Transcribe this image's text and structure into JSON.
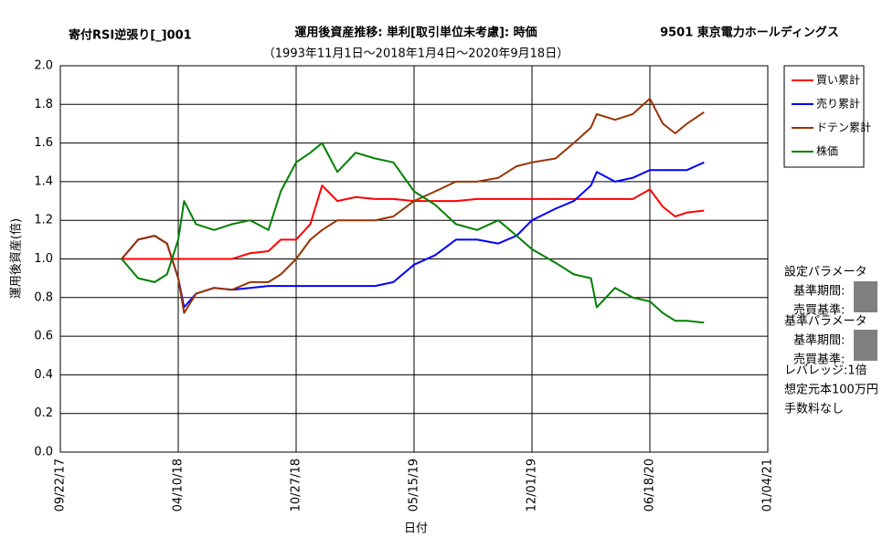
{
  "chart_data": {
    "type": "line",
    "header_left": "寄付RSI逆張り[_]001",
    "title": "運用後資産推移: 単利[取引単位未考慮]: 時価",
    "header_right": "9501 東京電力ホールディングス",
    "subtitle": "（1993年11月1日～2018年1月4日～2020年9月18日）",
    "x_label": "日付",
    "y_label": "運用後資産(倍)",
    "x": [
      "01/04/18",
      "02/01/18",
      "03/01/18",
      "03/22/18",
      "04/10/18",
      "04/20/18",
      "05/10/18",
      "06/10/18",
      "07/10/18",
      "08/10/18",
      "09/10/18",
      "10/01/18",
      "10/27/18",
      "11/20/18",
      "12/10/18",
      "01/05/19",
      "02/05/19",
      "03/10/19",
      "04/10/19",
      "05/15/19",
      "06/20/19",
      "07/25/19",
      "08/30/19",
      "10/05/19",
      "11/05/19",
      "12/01/19",
      "01/10/20",
      "02/10/20",
      "03/10/20",
      "03/20/20",
      "04/20/20",
      "05/20/20",
      "06/18/20",
      "07/10/20",
      "07/31/20",
      "08/20/20",
      "09/18/20"
    ],
    "series": [
      {
        "name": "買い累計",
        "color": "#ff0000",
        "values": [
          1.0,
          1.0,
          1.0,
          1.0,
          1.0,
          1.0,
          1.0,
          1.0,
          1.0,
          1.03,
          1.04,
          1.1,
          1.1,
          1.18,
          1.38,
          1.3,
          1.32,
          1.31,
          1.31,
          1.3,
          1.3,
          1.3,
          1.31,
          1.31,
          1.31,
          1.31,
          1.31,
          1.31,
          1.31,
          1.31,
          1.31,
          1.31,
          1.36,
          1.27,
          1.22,
          1.24,
          1.25
        ]
      },
      {
        "name": "売り累計",
        "color": "#0000ff",
        "values": [
          1.0,
          1.1,
          1.12,
          1.08,
          0.9,
          0.75,
          0.82,
          0.85,
          0.84,
          0.85,
          0.86,
          0.86,
          0.86,
          0.86,
          0.86,
          0.86,
          0.86,
          0.86,
          0.88,
          0.97,
          1.02,
          1.1,
          1.1,
          1.08,
          1.12,
          1.2,
          1.26,
          1.3,
          1.38,
          1.45,
          1.4,
          1.42,
          1.46,
          1.46,
          1.46,
          1.46,
          1.5
        ]
      },
      {
        "name": "ドテン累計",
        "color": "#993300",
        "values": [
          1.0,
          1.1,
          1.12,
          1.08,
          0.9,
          0.72,
          0.82,
          0.85,
          0.84,
          0.88,
          0.88,
          0.92,
          1.0,
          1.1,
          1.15,
          1.2,
          1.2,
          1.2,
          1.22,
          1.3,
          1.35,
          1.4,
          1.4,
          1.42,
          1.48,
          1.5,
          1.52,
          1.6,
          1.68,
          1.75,
          1.72,
          1.75,
          1.83,
          1.7,
          1.65,
          1.7,
          1.76
        ]
      },
      {
        "name": "株価",
        "color": "#008000",
        "values": [
          1.0,
          0.9,
          0.88,
          0.92,
          1.1,
          1.3,
          1.18,
          1.15,
          1.18,
          1.2,
          1.15,
          1.35,
          1.5,
          1.55,
          1.6,
          1.45,
          1.55,
          1.52,
          1.5,
          1.35,
          1.28,
          1.18,
          1.15,
          1.2,
          1.12,
          1.05,
          0.98,
          0.92,
          0.9,
          0.75,
          0.85,
          0.8,
          0.78,
          0.72,
          0.68,
          0.68,
          0.67
        ]
      }
    ],
    "xlim": [
      "09/22/17",
      "01/04/21"
    ],
    "xticks": [
      "09/22/17",
      "04/10/18",
      "10/27/18",
      "05/15/19",
      "12/01/19",
      "06/18/20",
      "01/04/21"
    ],
    "ylim": [
      0,
      2
    ],
    "yticks": [
      {
        "value": 0,
        "label": "0.0"
      },
      {
        "value": 0.2,
        "label": "0.2"
      },
      {
        "value": 0.4,
        "label": "0.4"
      },
      {
        "value": 0.6,
        "label": "0.6"
      },
      {
        "value": 0.8,
        "label": "0.8"
      },
      {
        "value": 1,
        "label": "1.0"
      },
      {
        "value": 1.2,
        "label": "1.2"
      },
      {
        "value": 1.4,
        "label": "1.4"
      },
      {
        "value": 1.6,
        "label": "1.6"
      },
      {
        "value": 1.8,
        "label": "1.8"
      },
      {
        "value": 2,
        "label": "2.0"
      }
    ],
    "grid": true,
    "legend": "right",
    "side_panel": [
      "設定パラメータ",
      "基準期間:",
      "売買基準:",
      "基準パラメータ",
      "基準期間:",
      "売買基準:",
      "レバレッジ:1倍",
      "想定元本100万円",
      "手数料なし"
    ]
  }
}
